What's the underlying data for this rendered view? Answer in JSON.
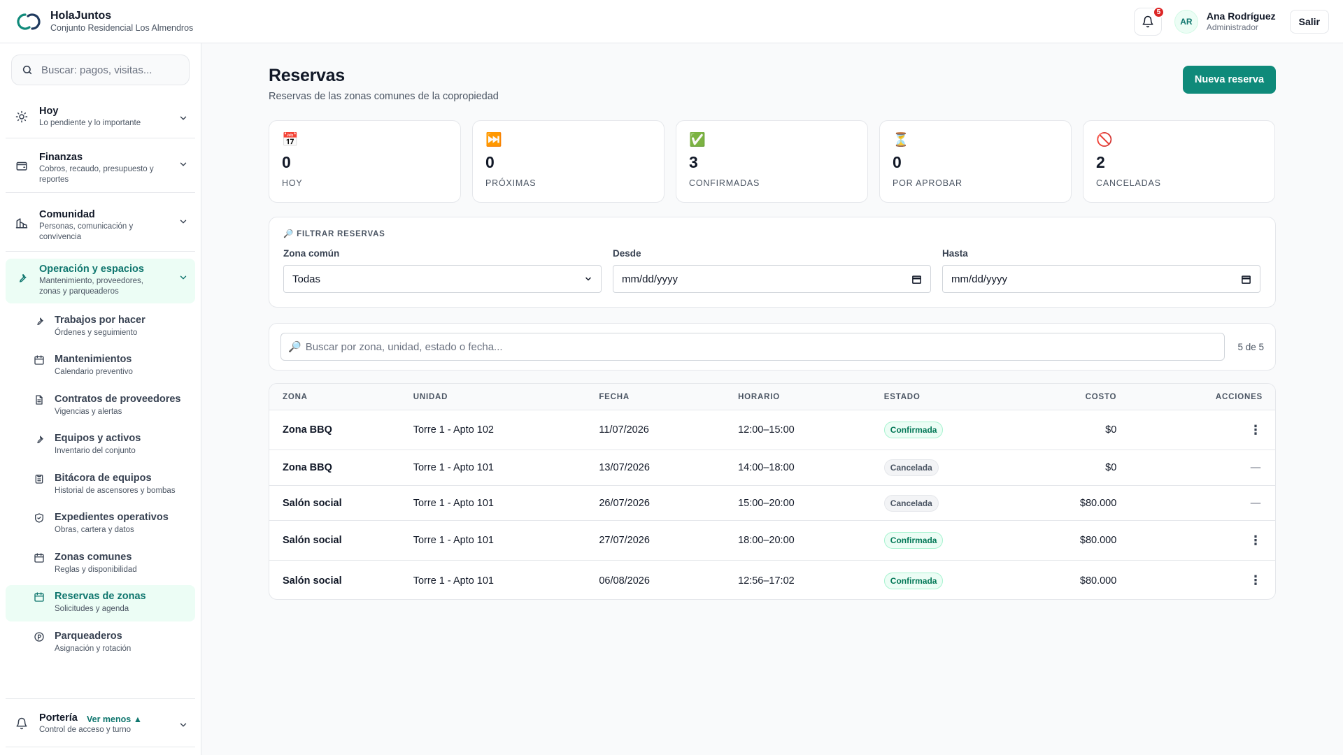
{
  "header": {
    "app_name": "HolaJuntos",
    "subtitle": "Conjunto Residencial Los Almendros",
    "notif_count": "5",
    "user_initials": "AR",
    "user_name": "Ana Rodríguez",
    "user_role": "Administrador",
    "logout_label": "Salir"
  },
  "sidebar": {
    "search_placeholder": "Buscar: pagos, visitas...",
    "groups": [
      {
        "title": "Hoy",
        "subtitle": "Lo pendiente y lo importante",
        "icon": "sun-icon"
      },
      {
        "title": "Finanzas",
        "subtitle": "Cobros, recaudo, presupuesto y reportes",
        "icon": "wallet-icon"
      },
      {
        "title": "Comunidad",
        "subtitle": "Personas, comunicación y convivencia",
        "icon": "buildings-icon"
      },
      {
        "title": "Operación y espacios",
        "subtitle": "Mantenimiento, proveedores, zonas y parqueaderos",
        "icon": "wrench-icon"
      },
      {
        "title": "Portería",
        "subtitle": "Control de acceso y turno",
        "icon": "bell-icon"
      }
    ],
    "items": [
      {
        "title": "Trabajos por hacer",
        "subtitle": "Órdenes y seguimiento",
        "icon": "wrench-icon"
      },
      {
        "title": "Mantenimientos",
        "subtitle": "Calendario preventivo",
        "icon": "calendar-icon"
      },
      {
        "title": "Contratos de proveedores",
        "subtitle": "Vigencias y alertas",
        "icon": "document-icon"
      },
      {
        "title": "Equipos y activos",
        "subtitle": "Inventario del conjunto",
        "icon": "wrench-icon"
      },
      {
        "title": "Bitácora de equipos",
        "subtitle": "Historial de ascensores y bombas",
        "icon": "clipboard-icon"
      },
      {
        "title": "Expedientes operativos",
        "subtitle": "Obras, cartera y datos",
        "icon": "shield-icon"
      },
      {
        "title": "Zonas comunes",
        "subtitle": "Reglas y disponibilidad",
        "icon": "calendar-icon"
      },
      {
        "title": "Reservas de zonas",
        "subtitle": "Solicitudes y agenda",
        "icon": "calendar-icon"
      },
      {
        "title": "Parqueaderos",
        "subtitle": "Asignación y rotación",
        "icon": "parking-icon"
      }
    ],
    "ver_menos": "Ver menos ▲"
  },
  "main": {
    "title": "Reservas",
    "subtitle": "Reservas de las zonas comunes de la copropiedad",
    "new_button": "Nueva reserva",
    "stats": [
      {
        "emoji": "📅",
        "value": "0",
        "label": "HOY"
      },
      {
        "emoji": "⏭️",
        "value": "0",
        "label": "PRÓXIMAS"
      },
      {
        "emoji": "✅",
        "value": "3",
        "label": "CONFIRMADAS"
      },
      {
        "emoji": "⏳",
        "value": "0",
        "label": "POR APROBAR"
      },
      {
        "emoji": "🚫",
        "value": "2",
        "label": "CANCELADAS"
      }
    ],
    "filter": {
      "heading": "🔎 FILTRAR RESERVAS",
      "zona_label": "Zona común",
      "zona_value": "Todas",
      "desde_label": "Desde",
      "desde_value": "mm/dd/yyyy",
      "hasta_label": "Hasta",
      "hasta_value": "mm/dd/yyyy"
    },
    "table_search": {
      "icon": "🔎",
      "placeholder": "Buscar por zona, unidad, estado o fecha...",
      "count": "5 de 5"
    },
    "table": {
      "headers": [
        "ZONA",
        "UNIDAD",
        "FECHA",
        "HORARIO",
        "ESTADO",
        "COSTO",
        "ACCIONES"
      ],
      "rows": [
        {
          "zona": "Zona BBQ",
          "unidad": "Torre 1 - Apto 102",
          "fecha": "11/07/2026",
          "horario": "12:00–15:00",
          "estado": "Confirmada",
          "costo": "$0",
          "accion": "⋮"
        },
        {
          "zona": "Zona BBQ",
          "unidad": "Torre 1 - Apto 101",
          "fecha": "13/07/2026",
          "horario": "14:00–18:00",
          "estado": "Cancelada",
          "costo": "$0",
          "accion": "—"
        },
        {
          "zona": "Salón social",
          "unidad": "Torre 1 - Apto 101",
          "fecha": "26/07/2026",
          "horario": "15:00–20:00",
          "estado": "Cancelada",
          "costo": "$80.000",
          "accion": "—"
        },
        {
          "zona": "Salón social",
          "unidad": "Torre 1 - Apto 101",
          "fecha": "27/07/2026",
          "horario": "18:00–20:00",
          "estado": "Confirmada",
          "costo": "$80.000",
          "accion": "⋮"
        },
        {
          "zona": "Salón social",
          "unidad": "Torre 1 - Apto 101",
          "fecha": "06/08/2026",
          "horario": "12:56–17:02",
          "estado": "Confirmada",
          "costo": "$80.000",
          "accion": "⋮"
        }
      ]
    }
  },
  "colors": {
    "accent": "#0f8a7a",
    "accent_dark": "#0f766e",
    "active_bg": "#ecfdf5",
    "badge_red": "#dc2626"
  }
}
